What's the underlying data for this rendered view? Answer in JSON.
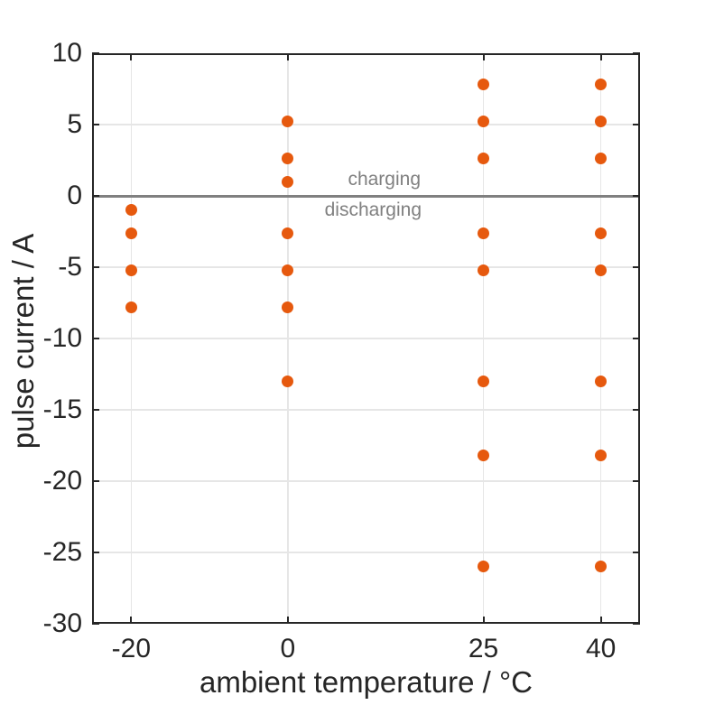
{
  "chart_data": {
    "type": "scatter",
    "title": "",
    "xlabel": "ambient temperature / °C",
    "ylabel": "pulse current / A",
    "xlim": [
      -25,
      45
    ],
    "ylim": [
      -30,
      10
    ],
    "xticks": [
      -20,
      0,
      25,
      40
    ],
    "yticks": [
      10,
      5,
      0,
      -5,
      -10,
      -15,
      -20,
      -25,
      -30
    ],
    "grid": true,
    "legend": null,
    "series": [
      {
        "name": "pulse-current-test-points",
        "marker": "circle",
        "color": "#e6590e",
        "points": [
          {
            "x": -20,
            "y": -1.0
          },
          {
            "x": -20,
            "y": -2.6
          },
          {
            "x": -20,
            "y": -5.2
          },
          {
            "x": -20,
            "y": -7.8
          },
          {
            "x": 0,
            "y": 5.2
          },
          {
            "x": 0,
            "y": 2.6
          },
          {
            "x": 0,
            "y": 1.0
          },
          {
            "x": 0,
            "y": -2.6
          },
          {
            "x": 0,
            "y": -5.2
          },
          {
            "x": 0,
            "y": -7.8
          },
          {
            "x": 0,
            "y": -13.0
          },
          {
            "x": 25,
            "y": 7.8
          },
          {
            "x": 25,
            "y": 5.2
          },
          {
            "x": 25,
            "y": 2.6
          },
          {
            "x": 25,
            "y": -2.6
          },
          {
            "x": 25,
            "y": -5.2
          },
          {
            "x": 25,
            "y": -13.0
          },
          {
            "x": 25,
            "y": -18.2
          },
          {
            "x": 25,
            "y": -26.0
          },
          {
            "x": 40,
            "y": 7.8
          },
          {
            "x": 40,
            "y": 5.2
          },
          {
            "x": 40,
            "y": 2.6
          },
          {
            "x": 40,
            "y": -2.6
          },
          {
            "x": 40,
            "y": -5.2
          },
          {
            "x": 40,
            "y": -13.0
          },
          {
            "x": 40,
            "y": -18.2
          },
          {
            "x": 40,
            "y": -26.0
          }
        ]
      }
    ],
    "reference_line": {
      "y": 0,
      "color": "#808080"
    },
    "annotations": [
      {
        "text": "charging",
        "position": "above-zero-line"
      },
      {
        "text": "discharging",
        "position": "below-zero-line"
      }
    ],
    "colors": {
      "marker": "#e6590e",
      "axis": "#262626",
      "grid": "#e6e6e6",
      "reference_line": "#808080",
      "annotation_text": "#808080",
      "background": "#ffffff"
    }
  }
}
